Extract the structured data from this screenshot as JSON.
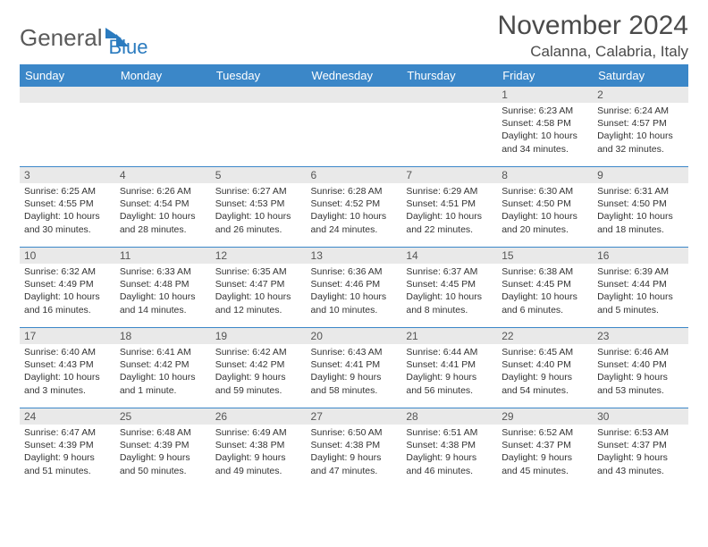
{
  "logo": {
    "part1": "General",
    "part2": "Blue"
  },
  "title": "November 2024",
  "location": "Calanna, Calabria, Italy",
  "styling": {
    "header_bg": "#3b87c8",
    "header_fg": "#ffffff",
    "daynum_bg": "#e9e9e9",
    "border_color": "#3b87c8",
    "body_fontsize": 10.5,
    "title_fontsize": 30,
    "location_fontsize": 17
  },
  "weekdays": [
    "Sunday",
    "Monday",
    "Tuesday",
    "Wednesday",
    "Thursday",
    "Friday",
    "Saturday"
  ],
  "weeks": [
    [
      {
        "day": "",
        "lines": [
          "",
          "",
          "",
          ""
        ]
      },
      {
        "day": "",
        "lines": [
          "",
          "",
          "",
          ""
        ]
      },
      {
        "day": "",
        "lines": [
          "",
          "",
          "",
          ""
        ]
      },
      {
        "day": "",
        "lines": [
          "",
          "",
          "",
          ""
        ]
      },
      {
        "day": "",
        "lines": [
          "",
          "",
          "",
          ""
        ]
      },
      {
        "day": "1",
        "lines": [
          "Sunrise: 6:23 AM",
          "Sunset: 4:58 PM",
          "Daylight: 10 hours",
          "and 34 minutes."
        ]
      },
      {
        "day": "2",
        "lines": [
          "Sunrise: 6:24 AM",
          "Sunset: 4:57 PM",
          "Daylight: 10 hours",
          "and 32 minutes."
        ]
      }
    ],
    [
      {
        "day": "3",
        "lines": [
          "Sunrise: 6:25 AM",
          "Sunset: 4:55 PM",
          "Daylight: 10 hours",
          "and 30 minutes."
        ]
      },
      {
        "day": "4",
        "lines": [
          "Sunrise: 6:26 AM",
          "Sunset: 4:54 PM",
          "Daylight: 10 hours",
          "and 28 minutes."
        ]
      },
      {
        "day": "5",
        "lines": [
          "Sunrise: 6:27 AM",
          "Sunset: 4:53 PM",
          "Daylight: 10 hours",
          "and 26 minutes."
        ]
      },
      {
        "day": "6",
        "lines": [
          "Sunrise: 6:28 AM",
          "Sunset: 4:52 PM",
          "Daylight: 10 hours",
          "and 24 minutes."
        ]
      },
      {
        "day": "7",
        "lines": [
          "Sunrise: 6:29 AM",
          "Sunset: 4:51 PM",
          "Daylight: 10 hours",
          "and 22 minutes."
        ]
      },
      {
        "day": "8",
        "lines": [
          "Sunrise: 6:30 AM",
          "Sunset: 4:50 PM",
          "Daylight: 10 hours",
          "and 20 minutes."
        ]
      },
      {
        "day": "9",
        "lines": [
          "Sunrise: 6:31 AM",
          "Sunset: 4:50 PM",
          "Daylight: 10 hours",
          "and 18 minutes."
        ]
      }
    ],
    [
      {
        "day": "10",
        "lines": [
          "Sunrise: 6:32 AM",
          "Sunset: 4:49 PM",
          "Daylight: 10 hours",
          "and 16 minutes."
        ]
      },
      {
        "day": "11",
        "lines": [
          "Sunrise: 6:33 AM",
          "Sunset: 4:48 PM",
          "Daylight: 10 hours",
          "and 14 minutes."
        ]
      },
      {
        "day": "12",
        "lines": [
          "Sunrise: 6:35 AM",
          "Sunset: 4:47 PM",
          "Daylight: 10 hours",
          "and 12 minutes."
        ]
      },
      {
        "day": "13",
        "lines": [
          "Sunrise: 6:36 AM",
          "Sunset: 4:46 PM",
          "Daylight: 10 hours",
          "and 10 minutes."
        ]
      },
      {
        "day": "14",
        "lines": [
          "Sunrise: 6:37 AM",
          "Sunset: 4:45 PM",
          "Daylight: 10 hours",
          "and 8 minutes."
        ]
      },
      {
        "day": "15",
        "lines": [
          "Sunrise: 6:38 AM",
          "Sunset: 4:45 PM",
          "Daylight: 10 hours",
          "and 6 minutes."
        ]
      },
      {
        "day": "16",
        "lines": [
          "Sunrise: 6:39 AM",
          "Sunset: 4:44 PM",
          "Daylight: 10 hours",
          "and 5 minutes."
        ]
      }
    ],
    [
      {
        "day": "17",
        "lines": [
          "Sunrise: 6:40 AM",
          "Sunset: 4:43 PM",
          "Daylight: 10 hours",
          "and 3 minutes."
        ]
      },
      {
        "day": "18",
        "lines": [
          "Sunrise: 6:41 AM",
          "Sunset: 4:42 PM",
          "Daylight: 10 hours",
          "and 1 minute."
        ]
      },
      {
        "day": "19",
        "lines": [
          "Sunrise: 6:42 AM",
          "Sunset: 4:42 PM",
          "Daylight: 9 hours",
          "and 59 minutes."
        ]
      },
      {
        "day": "20",
        "lines": [
          "Sunrise: 6:43 AM",
          "Sunset: 4:41 PM",
          "Daylight: 9 hours",
          "and 58 minutes."
        ]
      },
      {
        "day": "21",
        "lines": [
          "Sunrise: 6:44 AM",
          "Sunset: 4:41 PM",
          "Daylight: 9 hours",
          "and 56 minutes."
        ]
      },
      {
        "day": "22",
        "lines": [
          "Sunrise: 6:45 AM",
          "Sunset: 4:40 PM",
          "Daylight: 9 hours",
          "and 54 minutes."
        ]
      },
      {
        "day": "23",
        "lines": [
          "Sunrise: 6:46 AM",
          "Sunset: 4:40 PM",
          "Daylight: 9 hours",
          "and 53 minutes."
        ]
      }
    ],
    [
      {
        "day": "24",
        "lines": [
          "Sunrise: 6:47 AM",
          "Sunset: 4:39 PM",
          "Daylight: 9 hours",
          "and 51 minutes."
        ]
      },
      {
        "day": "25",
        "lines": [
          "Sunrise: 6:48 AM",
          "Sunset: 4:39 PM",
          "Daylight: 9 hours",
          "and 50 minutes."
        ]
      },
      {
        "day": "26",
        "lines": [
          "Sunrise: 6:49 AM",
          "Sunset: 4:38 PM",
          "Daylight: 9 hours",
          "and 49 minutes."
        ]
      },
      {
        "day": "27",
        "lines": [
          "Sunrise: 6:50 AM",
          "Sunset: 4:38 PM",
          "Daylight: 9 hours",
          "and 47 minutes."
        ]
      },
      {
        "day": "28",
        "lines": [
          "Sunrise: 6:51 AM",
          "Sunset: 4:38 PM",
          "Daylight: 9 hours",
          "and 46 minutes."
        ]
      },
      {
        "day": "29",
        "lines": [
          "Sunrise: 6:52 AM",
          "Sunset: 4:37 PM",
          "Daylight: 9 hours",
          "and 45 minutes."
        ]
      },
      {
        "day": "30",
        "lines": [
          "Sunrise: 6:53 AM",
          "Sunset: 4:37 PM",
          "Daylight: 9 hours",
          "and 43 minutes."
        ]
      }
    ]
  ]
}
